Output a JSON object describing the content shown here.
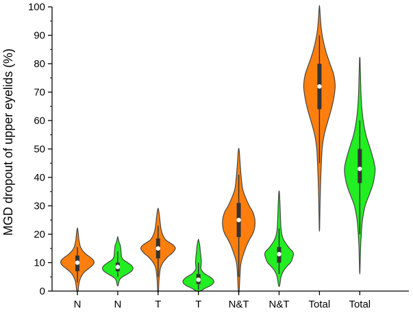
{
  "chart_data": {
    "type": "violin",
    "ylabel": "MGD dropout of upper eyelids (%)",
    "xlabel": "",
    "title": "",
    "ylim": [
      0,
      100
    ],
    "yticks": [
      0,
      10,
      20,
      30,
      40,
      50,
      60,
      70,
      80,
      90,
      100
    ],
    "colors": {
      "orange": "#FF7F0E",
      "green": "#22EE22",
      "outline": "#444444",
      "box": "#333333"
    },
    "groups": [
      {
        "label": "N",
        "color": "orange",
        "range": [
          0,
          22
        ],
        "q1": 7,
        "median": 10,
        "q3": 12.5,
        "whisker": [
          3,
          15.5
        ],
        "density": [
          [
            0,
            0.03
          ],
          [
            2,
            0.07
          ],
          [
            4,
            0.13
          ],
          [
            6,
            0.28
          ],
          [
            7,
            0.42
          ],
          [
            8,
            0.6
          ],
          [
            9,
            0.78
          ],
          [
            10,
            0.87
          ],
          [
            11,
            0.82
          ],
          [
            12,
            0.65
          ],
          [
            13,
            0.45
          ],
          [
            14,
            0.3
          ],
          [
            15,
            0.2
          ],
          [
            16,
            0.14
          ],
          [
            18,
            0.08
          ],
          [
            20,
            0.05
          ],
          [
            22,
            0.01
          ]
        ]
      },
      {
        "label": "N",
        "color": "green",
        "range": [
          2,
          19
        ],
        "q1": 7,
        "median": 8.5,
        "q3": 10,
        "whisker": [
          5,
          14
        ],
        "density": [
          [
            2,
            0.02
          ],
          [
            4,
            0.1
          ],
          [
            5,
            0.25
          ],
          [
            6,
            0.5
          ],
          [
            7,
            0.72
          ],
          [
            8,
            0.8
          ],
          [
            9,
            0.72
          ],
          [
            10,
            0.52
          ],
          [
            11,
            0.3
          ],
          [
            12,
            0.2
          ],
          [
            14,
            0.17
          ],
          [
            16,
            0.14
          ],
          [
            17,
            0.08
          ],
          [
            18,
            0.04
          ],
          [
            19,
            0.01
          ]
        ]
      },
      {
        "label": "T",
        "color": "orange",
        "range": [
          0,
          29
        ],
        "q1": 11.5,
        "median": 15,
        "q3": 18.5,
        "whisker": [
          5,
          23
        ],
        "density": [
          [
            0,
            0.02
          ],
          [
            4,
            0.05
          ],
          [
            8,
            0.12
          ],
          [
            10,
            0.25
          ],
          [
            12,
            0.5
          ],
          [
            13,
            0.68
          ],
          [
            14,
            0.82
          ],
          [
            15,
            0.9
          ],
          [
            16,
            0.82
          ],
          [
            17,
            0.62
          ],
          [
            18,
            0.4
          ],
          [
            20,
            0.23
          ],
          [
            22,
            0.15
          ],
          [
            24,
            0.11
          ],
          [
            26,
            0.08
          ],
          [
            28,
            0.04
          ],
          [
            29,
            0.01
          ]
        ]
      },
      {
        "label": "T",
        "color": "green",
        "range": [
          0,
          18
        ],
        "q1": 2.5,
        "median": 4,
        "q3": 6,
        "whisker": [
          0.5,
          10
        ],
        "density": [
          [
            0,
            0.1
          ],
          [
            1,
            0.35
          ],
          [
            2,
            0.65
          ],
          [
            3,
            0.8
          ],
          [
            4,
            0.77
          ],
          [
            5,
            0.6
          ],
          [
            6,
            0.35
          ],
          [
            7,
            0.2
          ],
          [
            8,
            0.13
          ],
          [
            10,
            0.15
          ],
          [
            12,
            0.13
          ],
          [
            14,
            0.1
          ],
          [
            16,
            0.07
          ],
          [
            18,
            0.01
          ]
        ]
      },
      {
        "label": "N&T",
        "color": "orange",
        "range": [
          0,
          50
        ],
        "q1": 19,
        "median": 25,
        "q3": 31,
        "whisker": [
          5,
          41
        ],
        "density": [
          [
            0,
            0.02
          ],
          [
            5,
            0.06
          ],
          [
            10,
            0.12
          ],
          [
            15,
            0.35
          ],
          [
            18,
            0.55
          ],
          [
            20,
            0.72
          ],
          [
            22,
            0.82
          ],
          [
            24,
            0.85
          ],
          [
            26,
            0.82
          ],
          [
            28,
            0.72
          ],
          [
            30,
            0.55
          ],
          [
            33,
            0.35
          ],
          [
            36,
            0.2
          ],
          [
            40,
            0.13
          ],
          [
            44,
            0.08
          ],
          [
            48,
            0.04
          ],
          [
            50,
            0.01
          ]
        ]
      },
      {
        "label": "N&T",
        "color": "green",
        "range": [
          2,
          35
        ],
        "q1": 10,
        "median": 13,
        "q3": 15.5,
        "whisker": [
          6,
          22
        ],
        "density": [
          [
            2,
            0.03
          ],
          [
            5,
            0.1
          ],
          [
            7,
            0.22
          ],
          [
            9,
            0.45
          ],
          [
            10,
            0.6
          ],
          [
            12,
            0.72
          ],
          [
            13,
            0.75
          ],
          [
            14,
            0.7
          ],
          [
            15,
            0.55
          ],
          [
            17,
            0.33
          ],
          [
            19,
            0.18
          ],
          [
            22,
            0.1
          ],
          [
            26,
            0.07
          ],
          [
            30,
            0.05
          ],
          [
            33,
            0.03
          ],
          [
            35,
            0.01
          ]
        ]
      },
      {
        "label": "Total",
        "color": "orange",
        "range": [
          22,
          100
        ],
        "q1": 64,
        "median": 72,
        "q3": 80,
        "whisker": [
          45,
          90
        ],
        "density": [
          [
            22,
            0.01
          ],
          [
            30,
            0.03
          ],
          [
            40,
            0.07
          ],
          [
            50,
            0.14
          ],
          [
            55,
            0.25
          ],
          [
            60,
            0.45
          ],
          [
            64,
            0.62
          ],
          [
            68,
            0.75
          ],
          [
            72,
            0.82
          ],
          [
            76,
            0.75
          ],
          [
            80,
            0.55
          ],
          [
            84,
            0.35
          ],
          [
            88,
            0.2
          ],
          [
            92,
            0.1
          ],
          [
            96,
            0.05
          ],
          [
            100,
            0.01
          ]
        ]
      },
      {
        "label": "Total",
        "color": "green",
        "range": [
          7,
          82
        ],
        "q1": 38,
        "median": 43,
        "q3": 50,
        "whisker": [
          20,
          60
        ],
        "density": [
          [
            7,
            0.01
          ],
          [
            15,
            0.04
          ],
          [
            20,
            0.08
          ],
          [
            25,
            0.14
          ],
          [
            30,
            0.28
          ],
          [
            34,
            0.5
          ],
          [
            37,
            0.66
          ],
          [
            40,
            0.76
          ],
          [
            43,
            0.8
          ],
          [
            46,
            0.72
          ],
          [
            50,
            0.55
          ],
          [
            55,
            0.32
          ],
          [
            60,
            0.18
          ],
          [
            65,
            0.1
          ],
          [
            70,
            0.06
          ],
          [
            75,
            0.04
          ],
          [
            80,
            0.02
          ],
          [
            82,
            0.01
          ]
        ]
      }
    ]
  }
}
